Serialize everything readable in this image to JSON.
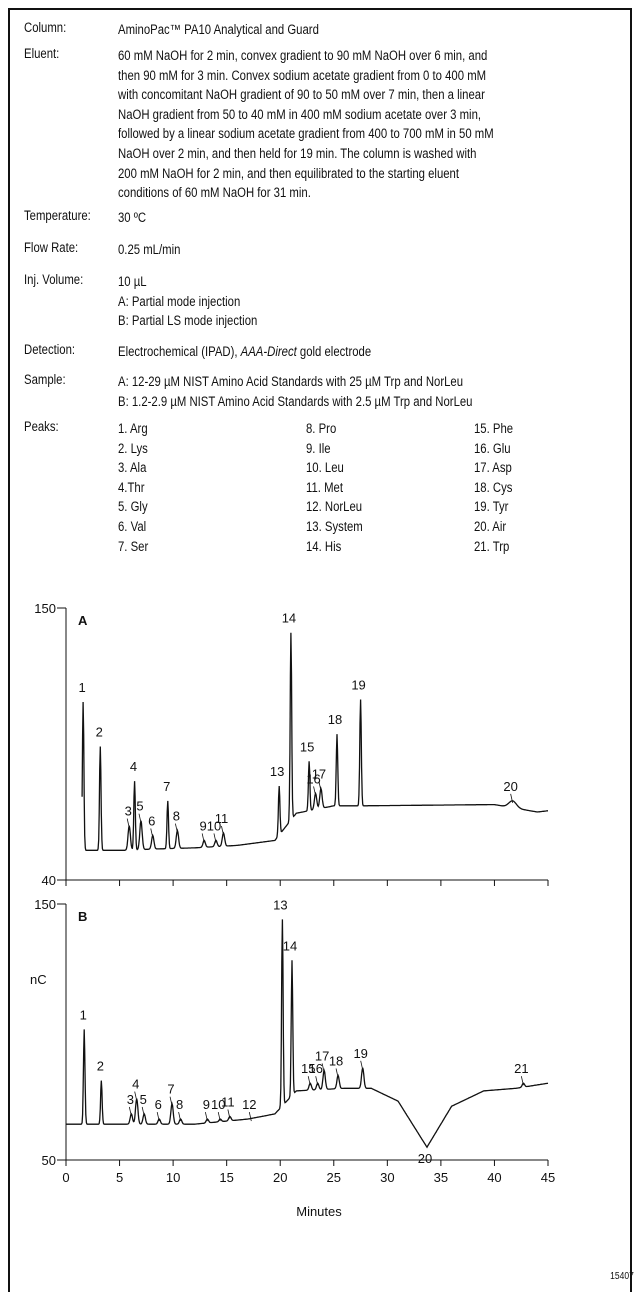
{
  "conditions": {
    "column_label": "Column:",
    "column": "AminoPac™ PA10 Analytical and Guard",
    "eluent_label": "Eluent:",
    "eluent_lines": [
      "60 mM NaOH for 2 min, convex gradient to 90 mM NaOH over 6 min, and",
      "then 90 mM for 3 min. Convex sodium acetate gradient from 0 to 400 mM",
      "with concomitant NaOH gradient of 90 to 50 mM over 7 min, then a linear",
      "NaOH gradient from 50 to 40 mM in 400 mM sodium acetate over 3 min,",
      "followed by a linear sodium acetate gradient from 400 to 700 mM in 50 mM",
      "NaOH over 2 min, and then held for 19 min. The column is washed with",
      "200 mM NaOH for 2 min, and then equilibrated to the starting eluent",
      "conditions of 60 mM NaOH for 31 min."
    ],
    "temperature_label": "Temperature:",
    "temperature": "30 ºC",
    "flow_rate_label": "Flow Rate:",
    "flow_rate": "0.25 mL/min",
    "inj_volume_label": "Inj. Volume:",
    "inj_volume_lines": [
      "10 µL",
      "A: Partial mode injection",
      "B: Partial LS mode injection"
    ],
    "detection_label": "Detection:",
    "detection_prefix": "Electrochemical (IPAD), ",
    "detection_italic": "AAA-Direct",
    "detection_suffix": " gold electrode",
    "sample_label": "Sample:",
    "sample_lines": [
      "A: 12-29 µM NIST Amino Acid Standards with 25 µM Trp and NorLeu",
      "B: 1.2-2.9 µM NIST Amino Acid Standards with 2.5 µM Trp and NorLeu"
    ],
    "peaks_label": "Peaks:",
    "peaks_col1": [
      "1. Arg",
      "2. Lys",
      "3. Ala",
      "4.Thr",
      "5. Gly",
      "6. Val",
      "7. Ser"
    ],
    "peaks_col2": [
      "8. Pro",
      "9. Ile",
      "10. Leu",
      "11. Met",
      "12. NorLeu",
      "13. System",
      "14. His"
    ],
    "peaks_col3": [
      "15. Phe",
      "16. Glu",
      "17. Asp",
      "18. Cys",
      "19. Tyr",
      "20. Air",
      "21. Trp"
    ]
  },
  "chart_data": [
    {
      "type": "line",
      "panel": "A",
      "ylim": [
        40,
        150
      ],
      "xlim": [
        0,
        45
      ],
      "y_ticks": [
        "150",
        "40"
      ],
      "baseline": [
        [
          1.5,
          52
        ],
        [
          5.5,
          52
        ],
        [
          8,
          52.5
        ],
        [
          12,
          53
        ],
        [
          16,
          54
        ],
        [
          19.5,
          56
        ],
        [
          21.5,
          67
        ],
        [
          25,
          70
        ],
        [
          27.5,
          70
        ],
        [
          40,
          70.5
        ],
        [
          44,
          67.5
        ],
        [
          45,
          68
        ]
      ],
      "peaks": [
        {
          "label": "1",
          "t": 1.6,
          "top": 112
        },
        {
          "label": "2",
          "t": 3.2,
          "top": 94
        },
        {
          "label": "3",
          "t": 5.9,
          "top": 62
        },
        {
          "label": "4",
          "t": 6.4,
          "top": 80
        },
        {
          "label": "5",
          "t": 7.0,
          "top": 64
        },
        {
          "label": "6",
          "t": 8.1,
          "top": 58
        },
        {
          "label": "7",
          "t": 9.5,
          "top": 72
        },
        {
          "label": "8",
          "t": 10.4,
          "top": 60
        },
        {
          "label": "9",
          "t": 12.9,
          "top": 56
        },
        {
          "label": "10",
          "t": 14.0,
          "top": 56
        },
        {
          "label": "11",
          "t": 14.7,
          "top": 59
        },
        {
          "label": "13",
          "t": 19.9,
          "top": 78
        },
        {
          "label": "14",
          "t": 21.0,
          "top": 140
        },
        {
          "label": "15",
          "t": 22.7,
          "top": 88
        },
        {
          "label": "16",
          "t": 23.3,
          "top": 75
        },
        {
          "label": "17",
          "t": 23.8,
          "top": 77
        },
        {
          "label": "18",
          "t": 25.3,
          "top": 99
        },
        {
          "label": "19",
          "t": 27.5,
          "top": 113
        },
        {
          "label": "20",
          "t": 41.7,
          "top": 72
        }
      ]
    },
    {
      "type": "line",
      "panel": "B",
      "ylabel": "nC",
      "xlabel": "Minutes",
      "ylim": [
        50,
        150
      ],
      "xlim": [
        0,
        45
      ],
      "y_ticks": [
        "150",
        "50"
      ],
      "x_ticks": [
        "0",
        "5",
        "10",
        "15",
        "20",
        "25",
        "30",
        "35",
        "40",
        "45"
      ],
      "baseline": [
        [
          0,
          64
        ],
        [
          12,
          64
        ],
        [
          17,
          66
        ],
        [
          19.5,
          68
        ],
        [
          21.5,
          77
        ],
        [
          26,
          78
        ],
        [
          28.5,
          78
        ],
        [
          31,
          73
        ],
        [
          33.7,
          55
        ],
        [
          36,
          71
        ],
        [
          39,
          77
        ],
        [
          42,
          78
        ],
        [
          45,
          80
        ]
      ],
      "peaks": [
        {
          "label": "1",
          "t": 1.7,
          "top": 101
        },
        {
          "label": "2",
          "t": 3.3,
          "top": 81
        },
        {
          "label": "3",
          "t": 6.1,
          "top": 68
        },
        {
          "label": "4",
          "t": 6.6,
          "top": 74
        },
        {
          "label": "5",
          "t": 7.3,
          "top": 68
        },
        {
          "label": "6",
          "t": 8.7,
          "top": 66
        },
        {
          "label": "7",
          "t": 9.9,
          "top": 72
        },
        {
          "label": "8",
          "t": 10.7,
          "top": 66
        },
        {
          "label": "9",
          "t": 13.2,
          "top": 66
        },
        {
          "label": "10",
          "t": 14.4,
          "top": 66
        },
        {
          "label": "11",
          "t": 15.3,
          "top": 67
        },
        {
          "label": "12",
          "t": 17.3,
          "top": 66
        },
        {
          "label": "13",
          "t": 20.2,
          "top": 144
        },
        {
          "label": "14",
          "t": 21.1,
          "top": 128
        },
        {
          "label": "15",
          "t": 22.8,
          "top": 80
        },
        {
          "label": "16",
          "t": 23.5,
          "top": 80
        },
        {
          "label": "17",
          "t": 24.1,
          "top": 85
        },
        {
          "label": "18",
          "t": 25.4,
          "top": 83
        },
        {
          "label": "19",
          "t": 27.7,
          "top": 86
        },
        {
          "label": "20",
          "t": 33.7,
          "top": 55
        },
        {
          "label": "21",
          "t": 42.7,
          "top": 80
        }
      ]
    }
  ],
  "figure_id": "15407"
}
